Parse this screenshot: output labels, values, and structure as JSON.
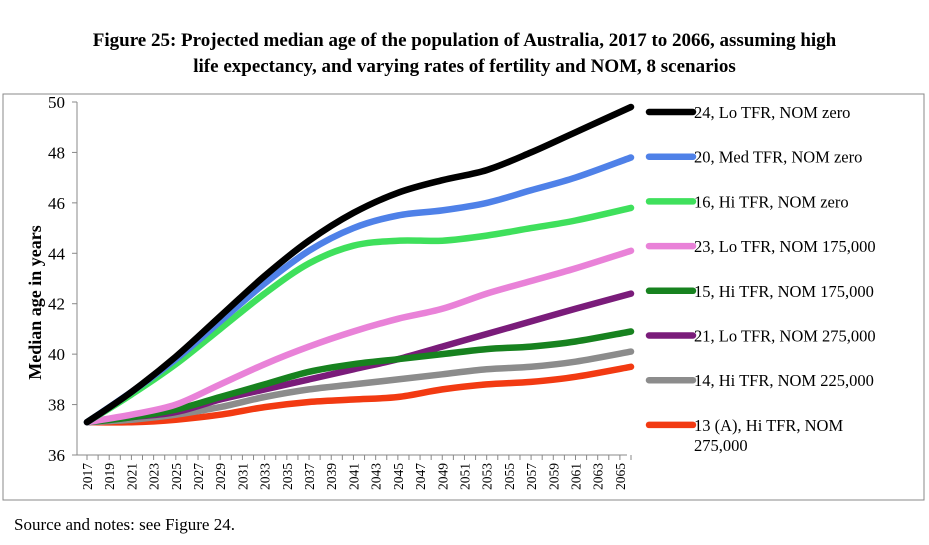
{
  "title": "Figure 25: Projected median age of the population of Australia, 2017 to 2066, assuming high life expectancy, and varying rates of fertility and NOM, 8 scenarios",
  "title_lines": [
    "Figure 25: Projected median age of the population of Australia, 2017 to 2066, assuming high",
    "life expectancy, and varying rates of fertility and NOM, 8 scenarios"
  ],
  "source_note": "Source and notes: see Figure 24.",
  "chart_data": {
    "type": "line",
    "ylabel": "Median age in years",
    "xlabel": "",
    "ylim": [
      36,
      50
    ],
    "y_ticks": [
      36,
      38,
      40,
      42,
      44,
      46,
      48,
      50
    ],
    "x_range": [
      2017,
      2066
    ],
    "x_ticks": [
      2017,
      2019,
      2021,
      2023,
      2025,
      2027,
      2029,
      2031,
      2033,
      2035,
      2037,
      2039,
      2041,
      2043,
      2045,
      2047,
      2049,
      2051,
      2053,
      2055,
      2057,
      2059,
      2061,
      2063,
      2065
    ],
    "grid": false,
    "legend_position": "right",
    "series": [
      {
        "name": "24, Lo TFR, NOM zero",
        "legend_lines": [
          "24, Lo TFR, NOM zero"
        ],
        "color": "#000000",
        "points": [
          [
            2017,
            37.3
          ],
          [
            2021,
            38.5
          ],
          [
            2025,
            39.9
          ],
          [
            2029,
            41.5
          ],
          [
            2033,
            43.1
          ],
          [
            2037,
            44.5
          ],
          [
            2041,
            45.6
          ],
          [
            2045,
            46.4
          ],
          [
            2049,
            46.9
          ],
          [
            2053,
            47.3
          ],
          [
            2057,
            48.0
          ],
          [
            2061,
            48.8
          ],
          [
            2066,
            49.8
          ]
        ]
      },
      {
        "name": "20, Med TFR, NOM zero",
        "legend_lines": [
          "20, Med TFR, NOM zero"
        ],
        "color": "#4f81e8",
        "points": [
          [
            2017,
            37.3
          ],
          [
            2021,
            38.5
          ],
          [
            2025,
            39.8
          ],
          [
            2029,
            41.3
          ],
          [
            2033,
            42.8
          ],
          [
            2037,
            44.1
          ],
          [
            2041,
            45.0
          ],
          [
            2045,
            45.5
          ],
          [
            2049,
            45.7
          ],
          [
            2053,
            46.0
          ],
          [
            2057,
            46.5
          ],
          [
            2061,
            47.0
          ],
          [
            2066,
            47.8
          ]
        ]
      },
      {
        "name": "16, Hi TFR, NOM zero",
        "legend_lines": [
          "16, Hi TFR, NOM zero"
        ],
        "color": "#3fe05c",
        "points": [
          [
            2017,
            37.3
          ],
          [
            2021,
            38.4
          ],
          [
            2025,
            39.6
          ],
          [
            2029,
            41.0
          ],
          [
            2033,
            42.4
          ],
          [
            2037,
            43.6
          ],
          [
            2041,
            44.3
          ],
          [
            2045,
            44.5
          ],
          [
            2049,
            44.5
          ],
          [
            2053,
            44.7
          ],
          [
            2057,
            45.0
          ],
          [
            2061,
            45.3
          ],
          [
            2066,
            45.8
          ]
        ]
      },
      {
        "name": "23, Lo TFR, NOM 175,000",
        "legend_lines": [
          "23, Lo TFR, NOM 175,000"
        ],
        "color": "#e982d8",
        "points": [
          [
            2017,
            37.3
          ],
          [
            2021,
            37.6
          ],
          [
            2025,
            38.0
          ],
          [
            2029,
            38.8
          ],
          [
            2033,
            39.6
          ],
          [
            2037,
            40.3
          ],
          [
            2041,
            40.9
          ],
          [
            2045,
            41.4
          ],
          [
            2049,
            41.8
          ],
          [
            2053,
            42.4
          ],
          [
            2057,
            42.9
          ],
          [
            2061,
            43.4
          ],
          [
            2066,
            44.1
          ]
        ]
      },
      {
        "name": "15, Hi TFR, NOM 175,000",
        "legend_lines": [
          "15, Hi TFR, NOM 175,000"
        ],
        "color": "#17821f",
        "points": [
          [
            2017,
            37.3
          ],
          [
            2021,
            37.5
          ],
          [
            2025,
            37.8
          ],
          [
            2029,
            38.3
          ],
          [
            2033,
            38.8
          ],
          [
            2037,
            39.3
          ],
          [
            2041,
            39.6
          ],
          [
            2045,
            39.8
          ],
          [
            2049,
            40.0
          ],
          [
            2053,
            40.2
          ],
          [
            2057,
            40.3
          ],
          [
            2061,
            40.5
          ],
          [
            2066,
            40.9
          ]
        ]
      },
      {
        "name": "21, Lo TFR, NOM 275,000",
        "legend_lines": [
          "21, Lo TFR, NOM 275,000"
        ],
        "color": "#7a1c7a",
        "points": [
          [
            2017,
            37.3
          ],
          [
            2021,
            37.5
          ],
          [
            2025,
            37.7
          ],
          [
            2029,
            38.2
          ],
          [
            2033,
            38.6
          ],
          [
            2037,
            39.0
          ],
          [
            2041,
            39.4
          ],
          [
            2045,
            39.8
          ],
          [
            2049,
            40.3
          ],
          [
            2053,
            40.8
          ],
          [
            2057,
            41.3
          ],
          [
            2061,
            41.8
          ],
          [
            2066,
            42.4
          ]
        ]
      },
      {
        "name": "14, Hi TFR, NOM 225,000",
        "legend_lines": [
          "14, Hi TFR, NOM 225,000"
        ],
        "color": "#8c8c8c",
        "points": [
          [
            2017,
            37.3
          ],
          [
            2021,
            37.4
          ],
          [
            2025,
            37.6
          ],
          [
            2029,
            37.9
          ],
          [
            2033,
            38.3
          ],
          [
            2037,
            38.6
          ],
          [
            2041,
            38.8
          ],
          [
            2045,
            39.0
          ],
          [
            2049,
            39.2
          ],
          [
            2053,
            39.4
          ],
          [
            2057,
            39.5
          ],
          [
            2061,
            39.7
          ],
          [
            2066,
            40.1
          ]
        ]
      },
      {
        "name": "13 (A), Hi TFR, NOM 275,000",
        "legend_lines": [
          "13 (A), Hi TFR, NOM",
          "275,000"
        ],
        "color": "#f23a12",
        "points": [
          [
            2017,
            37.3
          ],
          [
            2021,
            37.3
          ],
          [
            2025,
            37.4
          ],
          [
            2029,
            37.6
          ],
          [
            2033,
            37.9
          ],
          [
            2037,
            38.1
          ],
          [
            2041,
            38.2
          ],
          [
            2045,
            38.3
          ],
          [
            2049,
            38.6
          ],
          [
            2053,
            38.8
          ],
          [
            2057,
            38.9
          ],
          [
            2061,
            39.1
          ],
          [
            2066,
            39.5
          ]
        ]
      }
    ]
  }
}
